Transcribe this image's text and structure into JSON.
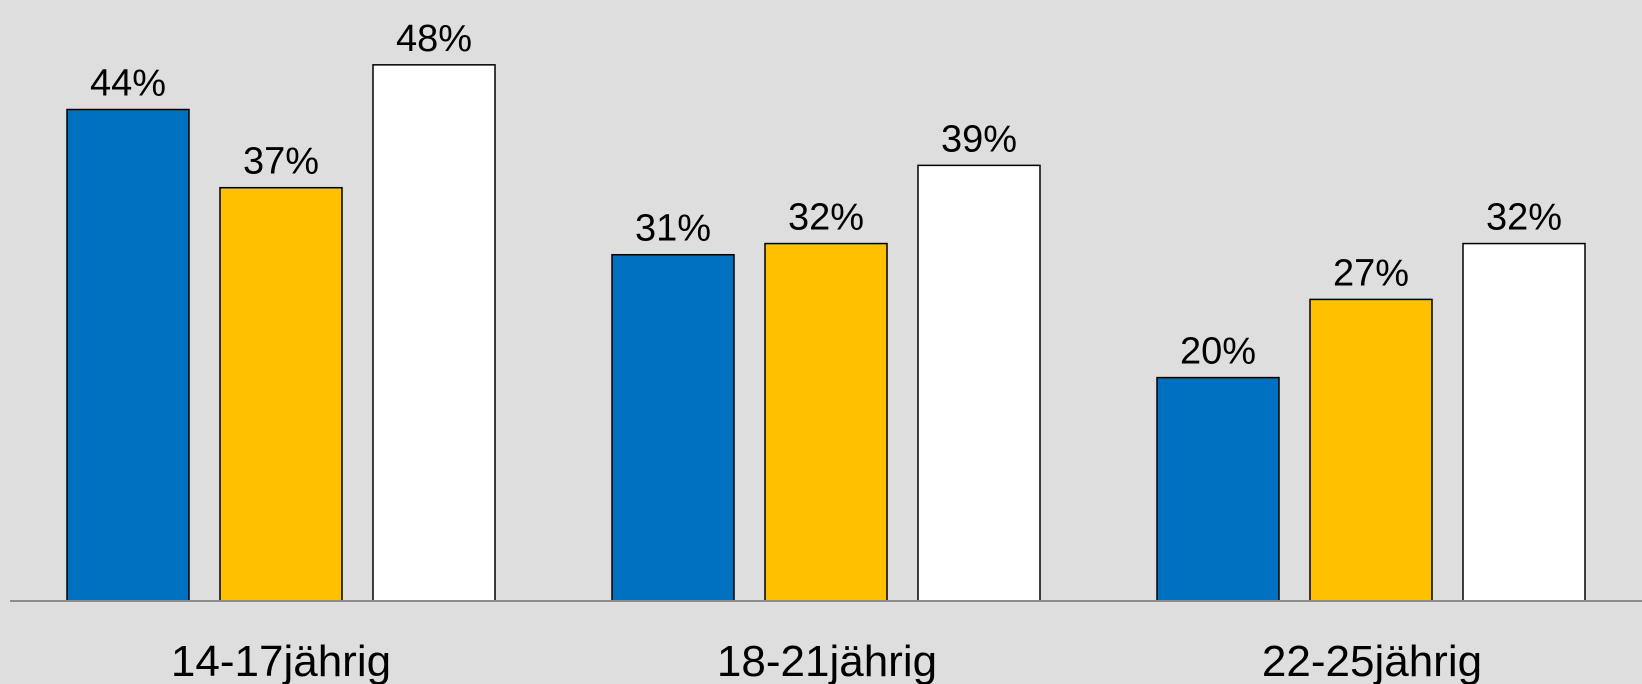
{
  "chart_data": {
    "type": "bar",
    "categories": [
      "14-17jährig",
      "18-21jährig",
      "22-25jährig"
    ],
    "series": [
      {
        "values": [
          44,
          31,
          20
        ],
        "color": "#0070c0",
        "value_labels": [
          "44%",
          "31%",
          "20%"
        ]
      },
      {
        "values": [
          37,
          32,
          27
        ],
        "color": "#ffc000",
        "value_labels": [
          "37%",
          "32%",
          "27%"
        ]
      },
      {
        "values": [
          48,
          39,
          32
        ],
        "color": "#ffffff",
        "value_labels": [
          "48%",
          "39%",
          "32%"
        ]
      }
    ],
    "ylim": [
      0,
      55
    ],
    "grid": false,
    "background": "#dedede",
    "axis_color": "#8c8c8c"
  }
}
